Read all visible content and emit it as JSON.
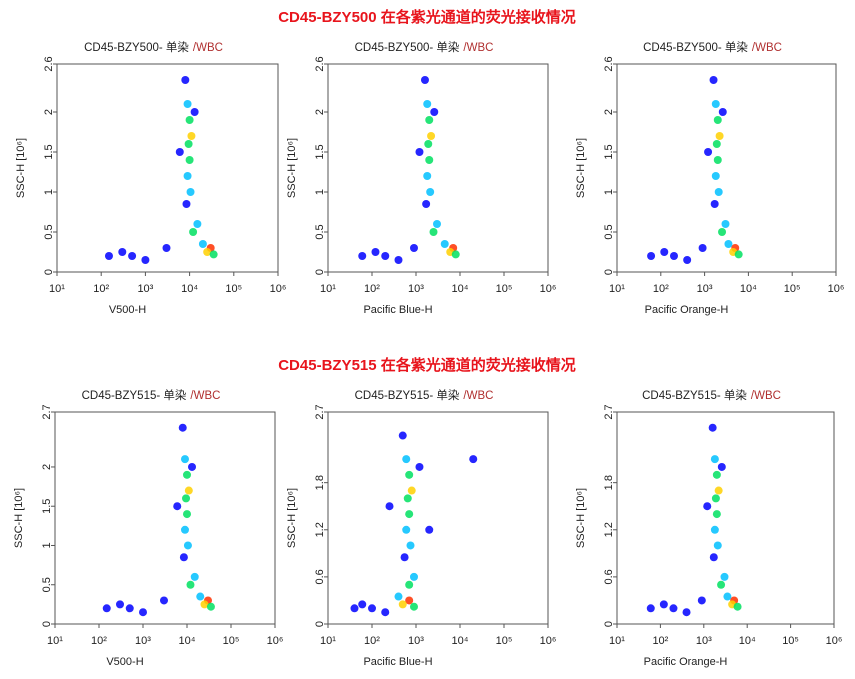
{
  "headings": [
    "CD45-BZY500 在各紫光通道的荧光接收情况",
    "CD45-BZY515 在各紫光通道的荧光接收情况"
  ],
  "chart_data": [
    {
      "type": "scatter",
      "title": "CD45-BZY500- 单染",
      "gate": "/WBC",
      "x_label": "V500-H",
      "y_label": "SSC-H [10⁶]",
      "log_x": true,
      "xlim": [
        10,
        1000000
      ],
      "xticks": [
        {
          "value": 10,
          "label": "10¹"
        },
        {
          "value": 100,
          "label": "10²"
        },
        {
          "value": 1000,
          "label": "10³"
        },
        {
          "value": 10000,
          "label": "10⁴"
        },
        {
          "value": 100000,
          "label": "10⁵"
        },
        {
          "value": 1000000,
          "label": "10⁶"
        }
      ],
      "ylim": [
        0,
        2.6
      ],
      "yticks": [
        0,
        0.5,
        1,
        1.5,
        2,
        2.6
      ],
      "x": [
        8000,
        9000,
        10000,
        9500,
        11000,
        10000,
        9000,
        10500,
        8500,
        13000,
        6000,
        15000,
        12000,
        30000,
        25000,
        35000,
        20000,
        500,
        300,
        1000,
        150,
        3000
      ],
      "y": [
        2.4,
        2.1,
        1.9,
        1.6,
        1.7,
        1.4,
        1.2,
        1.0,
        0.85,
        2.0,
        1.5,
        0.6,
        0.5,
        0.3,
        0.25,
        0.22,
        0.35,
        0.2,
        0.25,
        0.15,
        0.2,
        0.3
      ],
      "colors": [
        "#0000ff",
        "#00c0ff",
        "#00e060",
        "#00e060",
        "#ffd000",
        "#00e060",
        "#00c0ff",
        "#00c0ff",
        "#0000ff",
        "#0000ff",
        "#0000ff",
        "#00c0ff",
        "#00e060",
        "#ff3000",
        "#ffd000",
        "#00e060",
        "#00c0ff",
        "#0000ff",
        "#0000ff",
        "#0000ff",
        "#0000ff",
        "#0000ff"
      ]
    },
    {
      "type": "scatter",
      "title": "CD45-BZY500- 单染",
      "gate": "/WBC",
      "x_label": "Pacific Blue-H",
      "y_label": "SSC-H [10⁶]",
      "log_x": true,
      "xlim": [
        10,
        1000000
      ],
      "xticks": [
        {
          "value": 10,
          "label": "10¹"
        },
        {
          "value": 100,
          "label": "10²"
        },
        {
          "value": 1000,
          "label": "10³"
        },
        {
          "value": 10000,
          "label": "10⁴"
        },
        {
          "value": 100000,
          "label": "10⁵"
        },
        {
          "value": 1000000,
          "label": "10⁶"
        }
      ],
      "ylim": [
        0,
        2.6
      ],
      "yticks": [
        0,
        0.5,
        1,
        1.5,
        2,
        2.6
      ],
      "x": [
        1600,
        1800,
        2000,
        1900,
        2200,
        2000,
        1800,
        2100,
        1700,
        2600,
        1200,
        3000,
        2500,
        7000,
        6000,
        8000,
        4500,
        200,
        120,
        400,
        60,
        900
      ],
      "y": [
        2.4,
        2.1,
        1.9,
        1.6,
        1.7,
        1.4,
        1.2,
        1.0,
        0.85,
        2.0,
        1.5,
        0.6,
        0.5,
        0.3,
        0.25,
        0.22,
        0.35,
        0.2,
        0.25,
        0.15,
        0.2,
        0.3
      ],
      "colors": [
        "#0000ff",
        "#00c0ff",
        "#00e060",
        "#00e060",
        "#ffd000",
        "#00e060",
        "#00c0ff",
        "#00c0ff",
        "#0000ff",
        "#0000ff",
        "#0000ff",
        "#00c0ff",
        "#00e060",
        "#ff3000",
        "#ffd000",
        "#00e060",
        "#00c0ff",
        "#0000ff",
        "#0000ff",
        "#0000ff",
        "#0000ff",
        "#0000ff"
      ]
    },
    {
      "type": "scatter",
      "title": "CD45-BZY500- 单染",
      "gate": "/WBC",
      "x_label": "Pacific Orange-H",
      "y_label": "SSC-H [10⁶]",
      "log_x": true,
      "xlim": [
        10,
        1000000
      ],
      "xticks": [
        {
          "value": 10,
          "label": "10¹"
        },
        {
          "value": 100,
          "label": "10²"
        },
        {
          "value": 1000,
          "label": "10³"
        },
        {
          "value": 10000,
          "label": "10⁴"
        },
        {
          "value": 100000,
          "label": "10⁵"
        },
        {
          "value": 1000000,
          "label": "10⁶"
        }
      ],
      "ylim": [
        0,
        2.6
      ],
      "yticks": [
        0,
        0.5,
        1,
        1.5,
        2,
        2.6
      ],
      "x": [
        1600,
        1800,
        2000,
        1900,
        2200,
        2000,
        1800,
        2100,
        1700,
        2600,
        1200,
        3000,
        2500,
        5000,
        4500,
        6000,
        3500,
        200,
        120,
        400,
        60,
        900
      ],
      "y": [
        2.4,
        2.1,
        1.9,
        1.6,
        1.7,
        1.4,
        1.2,
        1.0,
        0.85,
        2.0,
        1.5,
        0.6,
        0.5,
        0.3,
        0.25,
        0.22,
        0.35,
        0.2,
        0.25,
        0.15,
        0.2,
        0.3
      ],
      "colors": [
        "#0000ff",
        "#00c0ff",
        "#00e060",
        "#00e060",
        "#ffd000",
        "#00e060",
        "#00c0ff",
        "#00c0ff",
        "#0000ff",
        "#0000ff",
        "#0000ff",
        "#00c0ff",
        "#00e060",
        "#ff3000",
        "#ffd000",
        "#00e060",
        "#00c0ff",
        "#0000ff",
        "#0000ff",
        "#0000ff",
        "#0000ff",
        "#0000ff"
      ]
    },
    {
      "type": "scatter",
      "title": "CD45-BZY515- 单染",
      "gate": "/WBC",
      "x_label": "V500-H",
      "y_label": "SSC-H [10⁶]",
      "log_x": true,
      "xlim": [
        10,
        1000000
      ],
      "xticks": [
        {
          "value": 10,
          "label": "10¹"
        },
        {
          "value": 100,
          "label": "10²"
        },
        {
          "value": 1000,
          "label": "10³"
        },
        {
          "value": 10000,
          "label": "10⁴"
        },
        {
          "value": 100000,
          "label": "10⁵"
        },
        {
          "value": 1000000,
          "label": "10⁶"
        }
      ],
      "ylim": [
        0,
        2.7
      ],
      "yticks": [
        0,
        0.5,
        1,
        1.5,
        2,
        2.7
      ],
      "x": [
        8000,
        9000,
        10000,
        9500,
        11000,
        10000,
        9000,
        10500,
        8500,
        13000,
        6000,
        15000,
        12000,
        30000,
        25000,
        35000,
        20000,
        500,
        300,
        1000,
        150,
        3000
      ],
      "y": [
        2.5,
        2.1,
        1.9,
        1.6,
        1.7,
        1.4,
        1.2,
        1.0,
        0.85,
        2.0,
        1.5,
        0.6,
        0.5,
        0.3,
        0.25,
        0.22,
        0.35,
        0.2,
        0.25,
        0.15,
        0.2,
        0.3
      ],
      "colors": [
        "#0000ff",
        "#00c0ff",
        "#00e060",
        "#00e060",
        "#ffd000",
        "#00e060",
        "#00c0ff",
        "#00c0ff",
        "#0000ff",
        "#0000ff",
        "#0000ff",
        "#00c0ff",
        "#00e060",
        "#ff3000",
        "#ffd000",
        "#00e060",
        "#00c0ff",
        "#0000ff",
        "#0000ff",
        "#0000ff",
        "#0000ff",
        "#0000ff"
      ]
    },
    {
      "type": "scatter",
      "title": "CD45-BZY515- 单染",
      "gate": "/WBC",
      "x_label": "Pacific Blue-H",
      "y_label": "SSC-H [10⁶]",
      "log_x": true,
      "xlim": [
        10,
        1000000
      ],
      "xticks": [
        {
          "value": 10,
          "label": "10¹"
        },
        {
          "value": 100,
          "label": "10²"
        },
        {
          "value": 1000,
          "label": "10³"
        },
        {
          "value": 10000,
          "label": "10⁴"
        },
        {
          "value": 100000,
          "label": "10⁵"
        },
        {
          "value": 1000000,
          "label": "10⁶"
        }
      ],
      "ylim": [
        0,
        2.7
      ],
      "yticks": [
        0,
        0.6,
        1.2,
        1.8,
        2.7
      ],
      "x": [
        500,
        600,
        700,
        650,
        800,
        700,
        600,
        750,
        550,
        1200,
        250,
        900,
        700,
        700,
        500,
        900,
        400,
        100,
        60,
        200,
        40,
        2000,
        20000
      ],
      "y": [
        2.4,
        2.1,
        1.9,
        1.6,
        1.7,
        1.4,
        1.2,
        1.0,
        0.85,
        2.0,
        1.5,
        0.6,
        0.5,
        0.3,
        0.25,
        0.22,
        0.35,
        0.2,
        0.25,
        0.15,
        0.2,
        1.2,
        2.1
      ],
      "colors": [
        "#0000ff",
        "#00c0ff",
        "#00e060",
        "#00e060",
        "#ffd000",
        "#00e060",
        "#00c0ff",
        "#00c0ff",
        "#0000ff",
        "#0000ff",
        "#0000ff",
        "#00c0ff",
        "#00e060",
        "#ff3000",
        "#ffd000",
        "#00e060",
        "#00c0ff",
        "#0000ff",
        "#0000ff",
        "#0000ff",
        "#0000ff",
        "#0000ff",
        "#0000ff"
      ]
    },
    {
      "type": "scatter",
      "title": "CD45-BZY515- 单染",
      "gate": "/WBC",
      "x_label": "Pacific Orange-H",
      "y_label": "SSC-H [10⁶]",
      "log_x": true,
      "xlim": [
        10,
        1000000
      ],
      "xticks": [
        {
          "value": 10,
          "label": "10¹"
        },
        {
          "value": 100,
          "label": "10²"
        },
        {
          "value": 1000,
          "label": "10³"
        },
        {
          "value": 10000,
          "label": "10⁴"
        },
        {
          "value": 100000,
          "label": "10⁵"
        },
        {
          "value": 1000000,
          "label": "10⁶"
        }
      ],
      "ylim": [
        0,
        2.7
      ],
      "yticks": [
        0,
        0.6,
        1.2,
        1.8,
        2.7
      ],
      "x": [
        1600,
        1800,
        2000,
        1900,
        2200,
        2000,
        1800,
        2100,
        1700,
        2600,
        1200,
        3000,
        2500,
        5000,
        4500,
        6000,
        3500,
        200,
        120,
        400,
        60,
        900
      ],
      "y": [
        2.5,
        2.1,
        1.9,
        1.6,
        1.7,
        1.4,
        1.2,
        1.0,
        0.85,
        2.0,
        1.5,
        0.6,
        0.5,
        0.3,
        0.25,
        0.22,
        0.35,
        0.2,
        0.25,
        0.15,
        0.2,
        0.3
      ],
      "colors": [
        "#0000ff",
        "#00c0ff",
        "#00e060",
        "#00e060",
        "#ffd000",
        "#00e060",
        "#00c0ff",
        "#00c0ff",
        "#0000ff",
        "#0000ff",
        "#0000ff",
        "#00c0ff",
        "#00e060",
        "#ff3000",
        "#ffd000",
        "#00e060",
        "#00c0ff",
        "#0000ff",
        "#0000ff",
        "#0000ff",
        "#0000ff",
        "#0000ff"
      ]
    }
  ]
}
